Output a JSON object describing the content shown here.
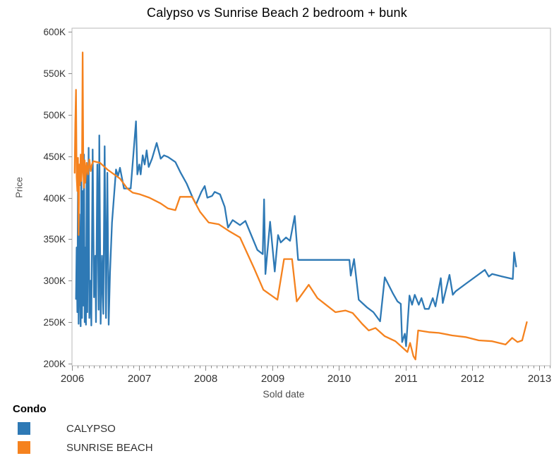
{
  "page": {
    "title": "Calypso vs Sunrise Beach 2 bedroom + bunk"
  },
  "axes": {
    "x": {
      "label": "Sold date",
      "major_ticks": [
        "2006",
        "2007",
        "2008",
        "2009",
        "2010",
        "2011",
        "2012",
        "2013"
      ],
      "minor_tick_interval": "monthly",
      "range_years": [
        2006,
        2013.17
      ]
    },
    "y": {
      "label": "Price",
      "ticks": [
        {
          "label": "600K",
          "value": 600
        },
        {
          "label": "550K",
          "value": 550
        },
        {
          "label": "500K",
          "value": 500
        },
        {
          "label": "450K",
          "value": 450
        },
        {
          "label": "400K",
          "value": 400
        },
        {
          "label": "350K",
          "value": 350
        },
        {
          "label": "300K",
          "value": 300
        },
        {
          "label": "250K",
          "value": 250
        },
        {
          "label": "200K",
          "value": 200
        }
      ],
      "range_thousands": [
        197,
        604
      ]
    }
  },
  "legend": {
    "title": "Condo",
    "items": [
      {
        "label": "CALYPSO",
        "color": "#2E79B5"
      },
      {
        "label": "SUNRISE BEACH",
        "color": "#F5821E"
      }
    ]
  },
  "chart_data": {
    "type": "line",
    "title": "Calypso vs Sunrise Beach 2 bedroom + bunk",
    "xlabel": "Sold date",
    "ylabel": "Price",
    "x_format": "decimal year",
    "y_unit": "USD thousands (K)",
    "xlim": [
      2006,
      2013.17
    ],
    "ylim": [
      197,
      604
    ],
    "grid": false,
    "legend_position": "bottom-left",
    "series": [
      {
        "name": "CALYPSO",
        "color": "#2E79B5",
        "points": [
          [
            2006.06,
            278
          ],
          [
            2006.07,
            340
          ],
          [
            2006.08,
            262
          ],
          [
            2006.09,
            420
          ],
          [
            2006.1,
            248
          ],
          [
            2006.11,
            380
          ],
          [
            2006.12,
            300
          ],
          [
            2006.13,
            245
          ],
          [
            2006.14,
            430
          ],
          [
            2006.15,
            255
          ],
          [
            2006.16,
            408
          ],
          [
            2006.17,
            270
          ],
          [
            2006.18,
            452
          ],
          [
            2006.19,
            250
          ],
          [
            2006.2,
            340
          ],
          [
            2006.21,
            247
          ],
          [
            2006.22,
            435
          ],
          [
            2006.23,
            262
          ],
          [
            2006.25,
            460
          ],
          [
            2006.26,
            255
          ],
          [
            2006.28,
            300
          ],
          [
            2006.29,
            246
          ],
          [
            2006.31,
            458
          ],
          [
            2006.33,
            280
          ],
          [
            2006.35,
            330
          ],
          [
            2006.36,
            250
          ],
          [
            2006.38,
            440
          ],
          [
            2006.4,
            265
          ],
          [
            2006.41,
            475
          ],
          [
            2006.43,
            248
          ],
          [
            2006.45,
            330
          ],
          [
            2006.47,
            260
          ],
          [
            2006.49,
            462
          ],
          [
            2006.51,
            255
          ],
          [
            2006.53,
            430
          ],
          [
            2006.55,
            247
          ],
          [
            2006.57,
            310
          ],
          [
            2006.6,
            370
          ],
          [
            2006.66,
            434
          ],
          [
            2006.69,
            426
          ],
          [
            2006.72,
            436
          ],
          [
            2006.78,
            411
          ],
          [
            2006.88,
            411
          ],
          [
            2006.96,
            492
          ],
          [
            2006.98,
            428
          ],
          [
            2007.01,
            440
          ],
          [
            2007.03,
            428
          ],
          [
            2007.06,
            451
          ],
          [
            2007.09,
            440
          ],
          [
            2007.12,
            457
          ],
          [
            2007.15,
            437
          ],
          [
            2007.2,
            447
          ],
          [
            2007.27,
            466
          ],
          [
            2007.33,
            447
          ],
          [
            2007.38,
            451
          ],
          [
            2007.44,
            449
          ],
          [
            2007.55,
            443
          ],
          [
            2007.63,
            430
          ],
          [
            2007.72,
            417
          ],
          [
            2007.81,
            400
          ],
          [
            2007.86,
            392
          ],
          [
            2007.94,
            407
          ],
          [
            2007.99,
            414
          ],
          [
            2008.03,
            400
          ],
          [
            2008.1,
            402
          ],
          [
            2008.14,
            407
          ],
          [
            2008.22,
            404
          ],
          [
            2008.29,
            389
          ],
          [
            2008.34,
            364
          ],
          [
            2008.41,
            373
          ],
          [
            2008.52,
            367
          ],
          [
            2008.6,
            372
          ],
          [
            2008.78,
            337
          ],
          [
            2008.86,
            332
          ],
          [
            2008.88,
            398
          ],
          [
            2008.9,
            308
          ],
          [
            2008.97,
            371
          ],
          [
            2009.04,
            311
          ],
          [
            2009.09,
            355
          ],
          [
            2009.13,
            346
          ],
          [
            2009.21,
            352
          ],
          [
            2009.27,
            348
          ],
          [
            2009.34,
            378
          ],
          [
            2009.39,
            325
          ],
          [
            2010.16,
            325
          ],
          [
            2010.18,
            306
          ],
          [
            2010.23,
            326
          ],
          [
            2010.3,
            277
          ],
          [
            2010.42,
            268
          ],
          [
            2010.52,
            262
          ],
          [
            2010.62,
            251
          ],
          [
            2010.69,
            304
          ],
          [
            2010.81,
            285
          ],
          [
            2010.88,
            275
          ],
          [
            2010.93,
            272
          ],
          [
            2010.95,
            226
          ],
          [
            2010.99,
            236
          ],
          [
            2011.01,
            221
          ],
          [
            2011.06,
            282
          ],
          [
            2011.1,
            271
          ],
          [
            2011.14,
            283
          ],
          [
            2011.2,
            271
          ],
          [
            2011.24,
            279
          ],
          [
            2011.29,
            266
          ],
          [
            2011.35,
            266
          ],
          [
            2011.41,
            279
          ],
          [
            2011.45,
            269
          ],
          [
            2011.53,
            303
          ],
          [
            2011.56,
            273
          ],
          [
            2011.66,
            307
          ],
          [
            2011.71,
            283
          ],
          [
            2011.75,
            287
          ],
          [
            2011.9,
            296
          ],
          [
            2012.19,
            313
          ],
          [
            2012.25,
            305
          ],
          [
            2012.3,
            308
          ],
          [
            2012.45,
            305
          ],
          [
            2012.61,
            302
          ],
          [
            2012.63,
            334
          ],
          [
            2012.66,
            317
          ]
        ]
      },
      {
        "name": "SUNRISE BEACH",
        "color": "#F5821E",
        "points": [
          [
            2006.04,
            430
          ],
          [
            2006.05,
            490
          ],
          [
            2006.06,
            530
          ],
          [
            2006.07,
            425
          ],
          [
            2006.08,
            408
          ],
          [
            2006.09,
            448
          ],
          [
            2006.1,
            355
          ],
          [
            2006.11,
            440
          ],
          [
            2006.12,
            415
          ],
          [
            2006.13,
            452
          ],
          [
            2006.14,
            420
          ],
          [
            2006.15,
            438
          ],
          [
            2006.16,
            575
          ],
          [
            2006.17,
            430
          ],
          [
            2006.18,
            412
          ],
          [
            2006.19,
            445
          ],
          [
            2006.2,
            418
          ],
          [
            2006.22,
            442
          ],
          [
            2006.24,
            428
          ],
          [
            2006.26,
            446
          ],
          [
            2006.28,
            432
          ],
          [
            2006.3,
            440
          ],
          [
            2006.32,
            444
          ],
          [
            2006.42,
            442
          ],
          [
            2006.53,
            434
          ],
          [
            2006.72,
            423
          ],
          [
            2006.83,
            411
          ],
          [
            2006.91,
            406
          ],
          [
            2007.02,
            404
          ],
          [
            2007.16,
            400
          ],
          [
            2007.33,
            393
          ],
          [
            2007.44,
            387
          ],
          [
            2007.55,
            385
          ],
          [
            2007.62,
            401
          ],
          [
            2007.8,
            401
          ],
          [
            2007.92,
            383
          ],
          [
            2008.05,
            370
          ],
          [
            2008.2,
            368
          ],
          [
            2008.35,
            360
          ],
          [
            2008.52,
            352
          ],
          [
            2008.73,
            315
          ],
          [
            2008.87,
            289
          ],
          [
            2009.08,
            277
          ],
          [
            2009.18,
            326
          ],
          [
            2009.3,
            326
          ],
          [
            2009.37,
            275
          ],
          [
            2009.55,
            295
          ],
          [
            2009.68,
            279
          ],
          [
            2009.79,
            272
          ],
          [
            2009.95,
            262
          ],
          [
            2010.1,
            264
          ],
          [
            2010.21,
            261
          ],
          [
            2010.35,
            248
          ],
          [
            2010.45,
            240
          ],
          [
            2010.55,
            243
          ],
          [
            2010.69,
            233
          ],
          [
            2010.85,
            227
          ],
          [
            2011.03,
            214
          ],
          [
            2011.07,
            225
          ],
          [
            2011.12,
            209
          ],
          [
            2011.15,
            205
          ],
          [
            2011.19,
            240
          ],
          [
            2011.35,
            238
          ],
          [
            2011.5,
            237
          ],
          [
            2011.7,
            234
          ],
          [
            2011.9,
            232
          ],
          [
            2012.1,
            228
          ],
          [
            2012.3,
            227
          ],
          [
            2012.5,
            223
          ],
          [
            2012.6,
            231
          ],
          [
            2012.68,
            226
          ],
          [
            2012.75,
            228
          ],
          [
            2012.82,
            250
          ]
        ]
      }
    ]
  }
}
